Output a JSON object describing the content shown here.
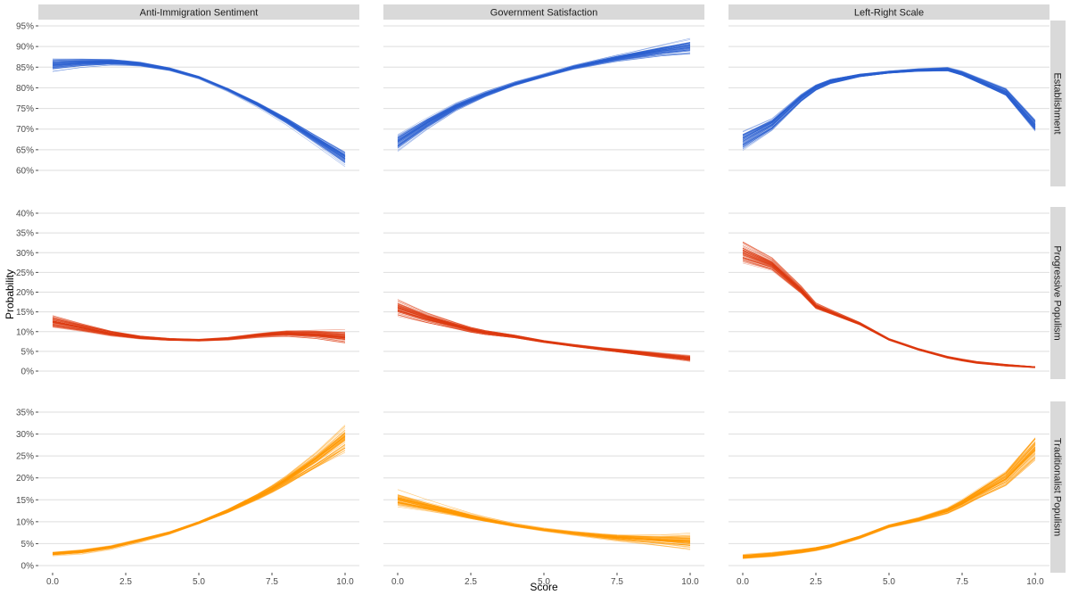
{
  "chart_data": {
    "type": "line",
    "title": "",
    "xlabel": "Score",
    "ylabel": "Probability",
    "grid": "horizontal major",
    "columns": [
      "Anti-Immigration Sentiment",
      "Government Satisfaction",
      "Left-Right Scale"
    ],
    "rows": [
      "Establishment",
      "Progressive Populism",
      "Traditionalist Populism"
    ],
    "x_ticks": [
      "0.0",
      "2.5",
      "5.0",
      "7.5",
      "10.0"
    ],
    "xlim": [
      0,
      10
    ],
    "row_axes": [
      {
        "row": "Establishment",
        "ylim": [
          0.6,
          0.95
        ],
        "ticks": [
          "60%",
          "65%",
          "70%",
          "75%",
          "80%",
          "85%",
          "90%",
          "95%"
        ]
      },
      {
        "row": "Progressive Populism",
        "ylim": [
          0.0,
          0.4
        ],
        "ticks": [
          "0%",
          "5%",
          "10%",
          "15%",
          "20%",
          "25%",
          "30%",
          "35%",
          "40%"
        ]
      },
      {
        "row": "Traditionalist Populism",
        "ylim": [
          0.0,
          0.35
        ],
        "ticks": [
          "0%",
          "5%",
          "10%",
          "15%",
          "20%",
          "25%",
          "30%",
          "35%"
        ]
      }
    ],
    "colors": {
      "Establishment": "#2a5fd0",
      "Progressive Populism": "#dd3a10",
      "Traditionalist Populism": "#ff9900"
    },
    "x": [
      0,
      1,
      2,
      2.5,
      3,
      4,
      5,
      6,
      7,
      7.5,
      8,
      9,
      10
    ],
    "series": [
      {
        "row": "Establishment",
        "column": "Anti-Immigration Sentiment",
        "values": [
          0.855,
          0.86,
          0.862,
          0.86,
          0.857,
          0.845,
          0.825,
          0.795,
          0.76,
          0.74,
          0.72,
          0.675,
          0.63
        ],
        "spread_start": 0.045,
        "spread_end": 0.05
      },
      {
        "row": "Establishment",
        "column": "Government Satisfaction",
        "values": [
          0.67,
          0.715,
          0.755,
          0.77,
          0.785,
          0.81,
          0.83,
          0.85,
          0.865,
          0.872,
          0.878,
          0.89,
          0.9
        ],
        "spread_start": 0.06,
        "spread_end": 0.05
      },
      {
        "row": "Establishment",
        "column": "Left-Right Scale",
        "values": [
          0.67,
          0.71,
          0.775,
          0.8,
          0.815,
          0.83,
          0.838,
          0.843,
          0.845,
          0.835,
          0.82,
          0.79,
          0.71
        ],
        "spread_start": 0.06,
        "spread_end": 0.05
      },
      {
        "row": "Progressive Populism",
        "column": "Anti-Immigration Sentiment",
        "values": [
          0.125,
          0.11,
          0.095,
          0.09,
          0.085,
          0.08,
          0.078,
          0.082,
          0.09,
          0.093,
          0.095,
          0.092,
          0.085
        ],
        "spread_start": 0.05,
        "spread_end": 0.05
      },
      {
        "row": "Progressive Populism",
        "column": "Government Satisfaction",
        "values": [
          0.16,
          0.135,
          0.115,
          0.105,
          0.098,
          0.088,
          0.075,
          0.065,
          0.056,
          0.052,
          0.048,
          0.04,
          0.032
        ],
        "spread_start": 0.06,
        "spread_end": 0.02
      },
      {
        "row": "Progressive Populism",
        "column": "Left-Right Scale",
        "values": [
          0.3,
          0.27,
          0.205,
          0.165,
          0.15,
          0.12,
          0.08,
          0.055,
          0.035,
          0.028,
          0.022,
          0.015,
          0.01
        ],
        "spread_start": 0.08,
        "spread_end": 0.005
      },
      {
        "row": "Traditionalist Populism",
        "column": "Anti-Immigration Sentiment",
        "values": [
          0.027,
          0.032,
          0.042,
          0.05,
          0.058,
          0.075,
          0.098,
          0.125,
          0.157,
          0.175,
          0.195,
          0.24,
          0.29
        ],
        "spread_start": 0.012,
        "spread_end": 0.1
      },
      {
        "row": "Traditionalist Populism",
        "column": "Government Satisfaction",
        "values": [
          0.15,
          0.135,
          0.12,
          0.112,
          0.105,
          0.092,
          0.082,
          0.074,
          0.067,
          0.064,
          0.062,
          0.058,
          0.055
        ],
        "spread_start": 0.05,
        "spread_end": 0.05
      },
      {
        "row": "Traditionalist Populism",
        "column": "Left-Right Scale",
        "values": [
          0.02,
          0.025,
          0.033,
          0.038,
          0.045,
          0.065,
          0.09,
          0.105,
          0.125,
          0.142,
          0.162,
          0.2,
          0.27
        ],
        "spread_start": 0.012,
        "spread_end": 0.08
      }
    ],
    "lines_per_panel": 60
  }
}
